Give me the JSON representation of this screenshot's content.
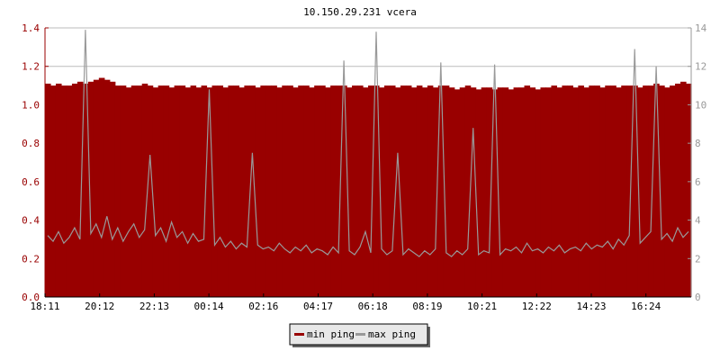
{
  "chart_data": {
    "type": "area+line",
    "title": "10.150.29.231 vcera",
    "x_tick_labels": [
      "18:11",
      "20:12",
      "22:13",
      "00:14",
      "02:16",
      "04:17",
      "06:18",
      "08:19",
      "10:21",
      "12:22",
      "14:23",
      "16:24"
    ],
    "y_left": {
      "ylim": [
        0,
        1.4
      ],
      "ticks": [
        "0.0",
        "0.2",
        "0.4",
        "0.6",
        "0.8",
        "1.0",
        "1.2",
        "1.4"
      ],
      "color": "#990000"
    },
    "y_right": {
      "ylim": [
        0,
        14
      ],
      "ticks": [
        "0",
        "2",
        "4",
        "6",
        "8",
        "10",
        "12",
        "14"
      ],
      "color": "#999999"
    },
    "grid": true,
    "legend_position": "bottom",
    "series": [
      {
        "name": "min ping",
        "axis": "left",
        "style": "area",
        "color": "#990000",
        "values": [
          1.11,
          1.1,
          1.11,
          1.1,
          1.1,
          1.11,
          1.12,
          1.11,
          1.12,
          1.13,
          1.14,
          1.13,
          1.12,
          1.1,
          1.1,
          1.09,
          1.1,
          1.1,
          1.11,
          1.1,
          1.09,
          1.1,
          1.1,
          1.09,
          1.1,
          1.1,
          1.09,
          1.1,
          1.09,
          1.1,
          1.09,
          1.1,
          1.1,
          1.09,
          1.1,
          1.1,
          1.09,
          1.1,
          1.1,
          1.09,
          1.1,
          1.1,
          1.1,
          1.09,
          1.1,
          1.1,
          1.09,
          1.1,
          1.1,
          1.09,
          1.1,
          1.1,
          1.09,
          1.1,
          1.1,
          1.1,
          1.09,
          1.1,
          1.1,
          1.09,
          1.1,
          1.1,
          1.09,
          1.1,
          1.1,
          1.09,
          1.1,
          1.1,
          1.09,
          1.1,
          1.09,
          1.1,
          1.09,
          1.1,
          1.1,
          1.09,
          1.08,
          1.09,
          1.1,
          1.09,
          1.08,
          1.09,
          1.09,
          1.08,
          1.09,
          1.09,
          1.08,
          1.09,
          1.09,
          1.1,
          1.09,
          1.08,
          1.09,
          1.09,
          1.1,
          1.09,
          1.1,
          1.1,
          1.09,
          1.1,
          1.09,
          1.1,
          1.1,
          1.09,
          1.1,
          1.1,
          1.09,
          1.1,
          1.1,
          1.1,
          1.09,
          1.1,
          1.1,
          1.11,
          1.1,
          1.09,
          1.1,
          1.11,
          1.12,
          1.11
        ]
      },
      {
        "name": "max ping",
        "axis": "right",
        "style": "line",
        "color": "#999999",
        "values": [
          3.2,
          2.9,
          3.4,
          2.8,
          3.1,
          3.6,
          3.0,
          13.9,
          3.3,
          3.8,
          3.1,
          4.2,
          3.0,
          3.6,
          2.9,
          3.4,
          3.8,
          3.1,
          3.5,
          7.4,
          3.2,
          3.6,
          2.9,
          3.9,
          3.1,
          3.4,
          2.8,
          3.3,
          2.9,
          3.0,
          10.8,
          2.7,
          3.1,
          2.6,
          2.9,
          2.5,
          2.8,
          2.6,
          7.5,
          2.7,
          2.5,
          2.6,
          2.4,
          2.8,
          2.5,
          2.3,
          2.6,
          2.4,
          2.7,
          2.3,
          2.5,
          2.4,
          2.2,
          2.6,
          2.3,
          12.3,
          2.4,
          2.2,
          2.6,
          3.4,
          2.3,
          13.8,
          2.5,
          2.2,
          2.4,
          7.5,
          2.2,
          2.5,
          2.3,
          2.1,
          2.4,
          2.2,
          2.5,
          12.2,
          2.3,
          2.1,
          2.4,
          2.2,
          2.5,
          8.8,
          2.2,
          2.4,
          2.3,
          12.1,
          2.2,
          2.5,
          2.4,
          2.6,
          2.3,
          2.8,
          2.4,
          2.5,
          2.3,
          2.6,
          2.4,
          2.7,
          2.3,
          2.5,
          2.6,
          2.4,
          2.8,
          2.5,
          2.7,
          2.6,
          2.9,
          2.5,
          3.0,
          2.7,
          3.2,
          12.9,
          2.8,
          3.1,
          3.4,
          12.0,
          3.0,
          3.3,
          2.9,
          3.6,
          3.1,
          3.4
        ]
      }
    ]
  }
}
